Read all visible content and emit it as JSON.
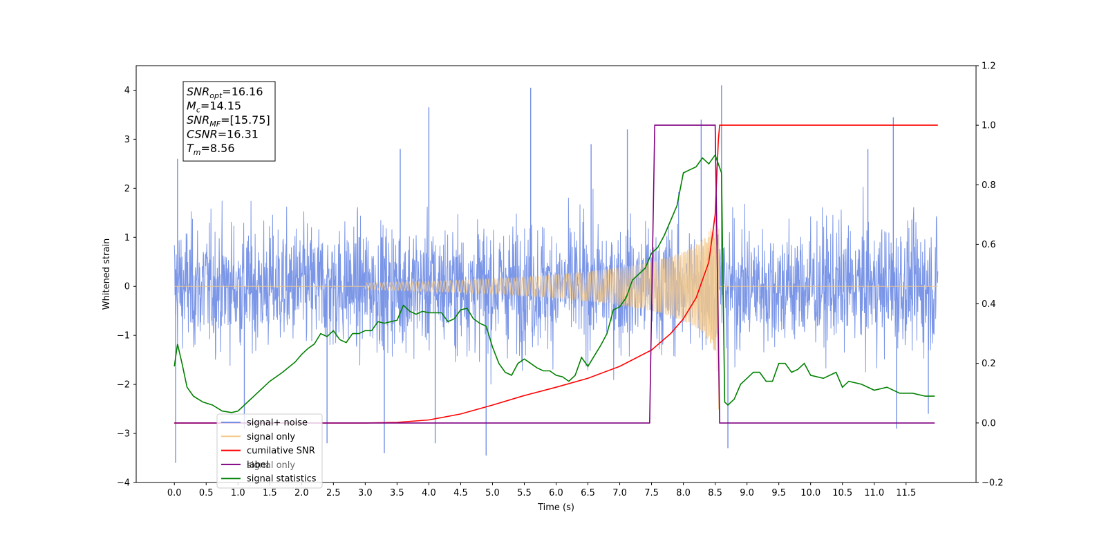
{
  "chart_data": {
    "type": "line",
    "xlabel": "Time (s)",
    "ylabel": "Whitened strain",
    "xlim": [
      -0.6,
      12.6
    ],
    "ylim": [
      -4,
      4.5
    ],
    "y2lim": [
      -0.2,
      1.2
    ],
    "x_ticks": [
      "0.0",
      "0.5",
      "1.0",
      "1.5",
      "2.0",
      "2.5",
      "3.0",
      "3.5",
      "4.0",
      "4.5",
      "5.0",
      "5.5",
      "6.0",
      "6.5",
      "7.0",
      "7.5",
      "8.0",
      "8.5",
      "9.0",
      "9.5",
      "10.0",
      "10.5",
      "11.0",
      "11.5"
    ],
    "y_ticks": [
      "−4",
      "−3",
      "−2",
      "−1",
      "0",
      "1",
      "2",
      "3",
      "4"
    ],
    "y2_ticks": [
      "−0.2",
      "0.0",
      "0.2",
      "0.4",
      "0.6",
      "0.8",
      "1.0",
      "1.2"
    ],
    "annotation": {
      "lines": [
        {
          "main": "SNR",
          "sub": "opt",
          "rest": "=16.16"
        },
        {
          "main": "M",
          "sub": "c",
          "rest": "=14.15"
        },
        {
          "main": "SNR",
          "sub": "MF",
          "rest": "=[15.75]"
        },
        {
          "main": "CSNR",
          "sub": "",
          "rest": "=16.31"
        },
        {
          "main": "T",
          "sub": "m",
          "rest": "=8.56"
        }
      ]
    },
    "legend": {
      "placement": "lower-left",
      "entries": [
        {
          "label": "signal+ noise",
          "color": "#7490e6"
        },
        {
          "label": "signal only",
          "color": "#f5c98a"
        },
        {
          "label": "cumilative SNR",
          "color": "#ff0000"
        },
        {
          "label": "label",
          "color": "#800080"
        },
        {
          "label": "signal statistics",
          "color": "#008000"
        }
      ],
      "overlapped_hidden_label": "signal only"
    },
    "series": [
      {
        "name": "signal+ noise",
        "axis": "left",
        "kind": "noise",
        "x_range": [
          0,
          12.0
        ],
        "typical_amplitude": 1.6,
        "spikes": [
          [
            0.02,
            -3.6
          ],
          [
            0.05,
            2.6
          ],
          [
            1.1,
            -2.9
          ],
          [
            2.4,
            -3.2
          ],
          [
            3.3,
            -3.4
          ],
          [
            3.55,
            2.8
          ],
          [
            4.0,
            3.65
          ],
          [
            4.1,
            -3.2
          ],
          [
            4.9,
            -3.45
          ],
          [
            5.6,
            4.05
          ],
          [
            6.55,
            2.9
          ],
          [
            7.12,
            3.2
          ],
          [
            8.7,
            -3.3
          ],
          [
            8.6,
            4.1
          ],
          [
            8.28,
            3.4
          ],
          [
            11.3,
            3.45
          ],
          [
            11.35,
            -2.9
          ],
          [
            10.9,
            2.8
          ],
          [
            11.85,
            -2.6
          ]
        ]
      },
      {
        "name": "signal only",
        "axis": "left",
        "kind": "chirp",
        "x_range": [
          0,
          12.0
        ],
        "merger_time": 8.56
      },
      {
        "name": "cumilative SNR",
        "axis": "right",
        "x": [
          0,
          3.0,
          3.5,
          4.0,
          4.5,
          5.0,
          5.5,
          6.0,
          6.5,
          7.0,
          7.5,
          7.8,
          8.0,
          8.2,
          8.4,
          8.5,
          8.55,
          8.57,
          12.0
        ],
        "y": [
          0.0,
          0.0,
          0.002,
          0.01,
          0.03,
          0.06,
          0.092,
          0.12,
          0.15,
          0.19,
          0.245,
          0.3,
          0.35,
          0.42,
          0.54,
          0.7,
          0.95,
          1.0,
          1.0
        ]
      },
      {
        "name": "label",
        "axis": "right",
        "x": [
          0,
          7.47,
          7.55,
          8.5,
          8.57,
          11.95
        ],
        "y": [
          0.0,
          0.0,
          1.0,
          1.0,
          0.0,
          0.0
        ]
      },
      {
        "name": "signal statistics",
        "axis": "right",
        "x": [
          0.0,
          0.05,
          0.12,
          0.2,
          0.3,
          0.45,
          0.6,
          0.75,
          0.9,
          1.0,
          1.1,
          1.3,
          1.5,
          1.7,
          1.9,
          2.0,
          2.1,
          2.2,
          2.3,
          2.4,
          2.5,
          2.6,
          2.7,
          2.8,
          2.9,
          3.0,
          3.1,
          3.2,
          3.3,
          3.4,
          3.5,
          3.6,
          3.7,
          3.8,
          3.9,
          4.0,
          4.1,
          4.2,
          4.3,
          4.4,
          4.5,
          4.6,
          4.7,
          4.8,
          4.9,
          5.0,
          5.1,
          5.2,
          5.3,
          5.4,
          5.5,
          5.6,
          5.7,
          5.8,
          5.9,
          6.0,
          6.1,
          6.2,
          6.3,
          6.4,
          6.5,
          6.6,
          6.7,
          6.8,
          6.9,
          7.0,
          7.1,
          7.2,
          7.3,
          7.4,
          7.5,
          7.6,
          7.7,
          7.8,
          7.9,
          8.0,
          8.1,
          8.2,
          8.3,
          8.4,
          8.5,
          8.6,
          8.65,
          8.7,
          8.8,
          8.9,
          9.0,
          9.1,
          9.2,
          9.3,
          9.4,
          9.5,
          9.6,
          9.7,
          9.8,
          9.9,
          10.0,
          10.2,
          10.4,
          10.5,
          10.6,
          10.8,
          11.0,
          11.2,
          11.4,
          11.6,
          11.8,
          11.95
        ],
        "y": [
          0.19,
          0.265,
          0.2,
          0.12,
          0.09,
          0.07,
          0.06,
          0.04,
          0.035,
          0.04,
          0.06,
          0.1,
          0.14,
          0.17,
          0.205,
          0.23,
          0.25,
          0.265,
          0.3,
          0.29,
          0.31,
          0.28,
          0.27,
          0.3,
          0.3,
          0.31,
          0.31,
          0.34,
          0.335,
          0.34,
          0.345,
          0.395,
          0.375,
          0.365,
          0.375,
          0.37,
          0.37,
          0.37,
          0.34,
          0.35,
          0.38,
          0.385,
          0.35,
          0.335,
          0.325,
          0.255,
          0.2,
          0.17,
          0.16,
          0.2,
          0.215,
          0.2,
          0.185,
          0.175,
          0.175,
          0.16,
          0.155,
          0.14,
          0.16,
          0.22,
          0.19,
          0.225,
          0.26,
          0.3,
          0.38,
          0.39,
          0.42,
          0.48,
          0.5,
          0.52,
          0.57,
          0.59,
          0.63,
          0.68,
          0.73,
          0.84,
          0.85,
          0.86,
          0.89,
          0.87,
          0.9,
          0.84,
          0.07,
          0.06,
          0.08,
          0.13,
          0.15,
          0.17,
          0.17,
          0.14,
          0.14,
          0.2,
          0.2,
          0.17,
          0.18,
          0.2,
          0.16,
          0.15,
          0.17,
          0.12,
          0.14,
          0.13,
          0.11,
          0.12,
          0.1,
          0.1,
          0.09,
          0.09
        ]
      }
    ]
  }
}
